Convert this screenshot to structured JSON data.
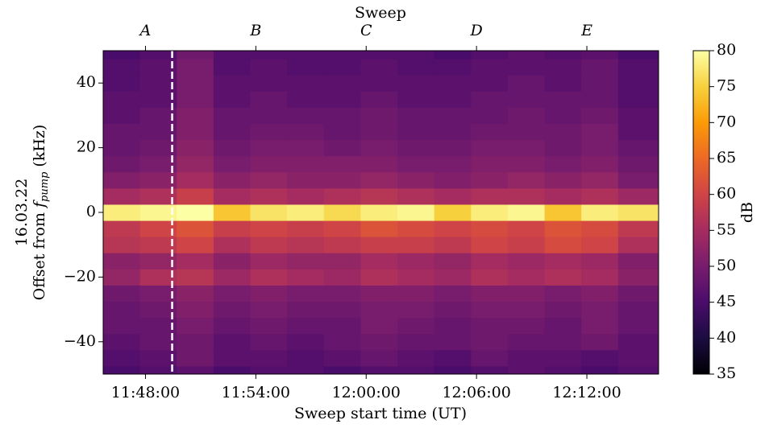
{
  "chart_data": {
    "type": "heatmap",
    "xlabel": "Sweep start time (UT)",
    "xlabel_top": "Sweep",
    "ylabel_date": "16.03.22",
    "ylabel_parts": [
      "Offset from ",
      "f",
      "pump",
      " (kHz)"
    ],
    "colorbar_label": "dB",
    "colormap": "inferno",
    "xlim": [
      705.7,
      735.9
    ],
    "ylim": [
      -50,
      50
    ],
    "zlim": [
      35,
      80
    ],
    "xticks": [
      {
        "value": 708,
        "label": "11:48:00"
      },
      {
        "value": 714,
        "label": "11:54:00"
      },
      {
        "value": 720,
        "label": "12:00:00"
      },
      {
        "value": 726,
        "label": "12:06:00"
      },
      {
        "value": 732,
        "label": "12:12:00"
      }
    ],
    "xticks_top": [
      {
        "value": 708,
        "label": "A"
      },
      {
        "value": 714,
        "label": "B"
      },
      {
        "value": 720,
        "label": "C"
      },
      {
        "value": 726,
        "label": "D"
      },
      {
        "value": 732,
        "label": "E"
      }
    ],
    "yticks": [
      {
        "value": -40,
        "label": "−40"
      },
      {
        "value": -20,
        "label": "−20"
      },
      0,
      20,
      40
    ],
    "zticks": [
      35,
      40,
      45,
      50,
      55,
      60,
      65,
      70,
      75,
      80
    ],
    "vlines": [
      {
        "x": 709.45,
        "color": "#ffffff",
        "style": "dashed"
      }
    ],
    "x_edges": [
      705.7,
      707.7,
      709.7,
      711.7,
      713.7,
      715.7,
      717.7,
      719.7,
      721.7,
      723.7,
      725.7,
      727.7,
      729.7,
      731.7,
      733.7,
      735.9
    ],
    "y_edges": [
      -50,
      -47.5,
      -42.5,
      -37.5,
      -32.5,
      -27.5,
      -22.5,
      -17.5,
      -12.5,
      -7.5,
      -2.5,
      2.5,
      7.5,
      12.5,
      17.5,
      22.5,
      27.5,
      32.5,
      37.5,
      42.5,
      47.5,
      50
    ],
    "z": [
      [
        45,
        46,
        47,
        45,
        46,
        46,
        45,
        46,
        46,
        45,
        46,
        47,
        46,
        45,
        46
      ],
      [
        46,
        47,
        49,
        47,
        47,
        46,
        47,
        48,
        47,
        46,
        48,
        47,
        47,
        46,
        47
      ],
      [
        47,
        48,
        49,
        47,
        48,
        47,
        48,
        49,
        48,
        48,
        49,
        48,
        48,
        49,
        47
      ],
      [
        48,
        48,
        50,
        48,
        49,
        48,
        48,
        50,
        49,
        48,
        49,
        49,
        48,
        50,
        48
      ],
      [
        48,
        49,
        51,
        49,
        50,
        49,
        49,
        50,
        50,
        49,
        50,
        50,
        49,
        50,
        48
      ],
      [
        49,
        50,
        52,
        50,
        51,
        50,
        50,
        51,
        51,
        50,
        51,
        51,
        50,
        51,
        49
      ],
      [
        53,
        56,
        57,
        54,
        56,
        55,
        54,
        56,
        55,
        54,
        56,
        55,
        56,
        55,
        52
      ],
      [
        52,
        53,
        55,
        52,
        54,
        53,
        53,
        55,
        54,
        53,
        55,
        54,
        55,
        54,
        51
      ],
      [
        57,
        58,
        60,
        56,
        58,
        57,
        58,
        59,
        59,
        58,
        60,
        59,
        61,
        60,
        56
      ],
      [
        58,
        60,
        62,
        59,
        60,
        59,
        60,
        62,
        61,
        60,
        61,
        60,
        62,
        61,
        58
      ],
      [
        78,
        79,
        80,
        74,
        77,
        78,
        76,
        78,
        79,
        75,
        78,
        79,
        74,
        78,
        77
      ],
      [
        55,
        56,
        59,
        55,
        56,
        55,
        56,
        57,
        56,
        55,
        56,
        56,
        55,
        56,
        54
      ],
      [
        51,
        52,
        55,
        52,
        53,
        52,
        52,
        53,
        52,
        51,
        52,
        53,
        52,
        53,
        50
      ],
      [
        49,
        50,
        53,
        50,
        51,
        51,
        51,
        51,
        50,
        50,
        51,
        51,
        50,
        51,
        49
      ],
      [
        48,
        49,
        52,
        49,
        50,
        50,
        49,
        50,
        49,
        49,
        50,
        50,
        49,
        50,
        48
      ],
      [
        48,
        48,
        51,
        48,
        49,
        49,
        48,
        49,
        48,
        48,
        49,
        49,
        49,
        50,
        47
      ],
      [
        47,
        48,
        51,
        48,
        48,
        48,
        48,
        49,
        48,
        48,
        48,
        49,
        48,
        49,
        47
      ],
      [
        47,
        47,
        50,
        47,
        48,
        47,
        47,
        48,
        47,
        47,
        48,
        48,
        48,
        48,
        46
      ],
      [
        46,
        47,
        50,
        47,
        47,
        47,
        47,
        47,
        47,
        47,
        47,
        48,
        47,
        48,
        46
      ],
      [
        46,
        47,
        50,
        46,
        47,
        46,
        46,
        47,
        46,
        46,
        47,
        47,
        47,
        48,
        46
      ],
      [
        45,
        46,
        49,
        46,
        46,
        46,
        46,
        46,
        46,
        45,
        46,
        47,
        46,
        47,
        45
      ]
    ]
  }
}
